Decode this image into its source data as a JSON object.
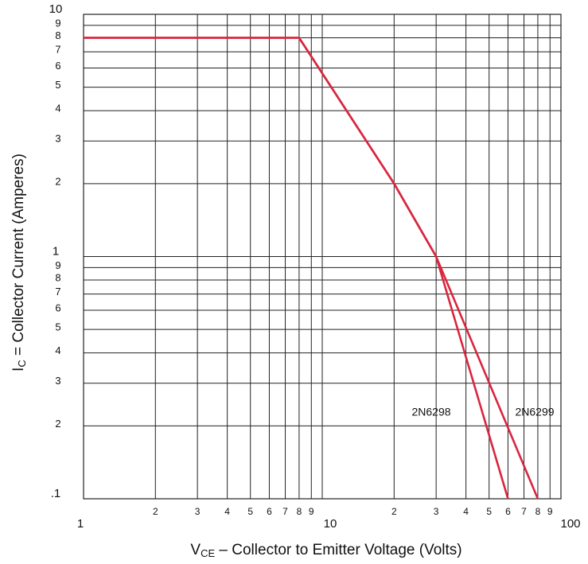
{
  "chart_data": {
    "type": "line",
    "xlabel": [
      "V",
      "CE",
      " – Collector to Emitter Voltage (Volts)"
    ],
    "ylabel": [
      "I",
      "C",
      " = Collector Current (Amperes)"
    ],
    "xscale": "log",
    "yscale": "log",
    "grid": true,
    "xlim": [
      1,
      100
    ],
    "ylim": [
      0.1,
      10
    ],
    "xticks": [
      1,
      2,
      3,
      4,
      5,
      6,
      7,
      8,
      9,
      10,
      {
        "value": 20,
        "label": "2"
      },
      {
        "value": 30,
        "label": "3"
      },
      {
        "value": 40,
        "label": "4"
      },
      {
        "value": 50,
        "label": "5"
      },
      {
        "value": 60,
        "label": "6"
      },
      {
        "value": 70,
        "label": "7"
      },
      {
        "value": 80,
        "label": "8"
      },
      {
        "value": 90,
        "label": "9"
      },
      100
    ],
    "yticks": [
      {
        "value": 0.1,
        "label": ".1"
      },
      {
        "value": 0.2,
        "label": "2"
      },
      {
        "value": 0.3,
        "label": "3"
      },
      {
        "value": 0.4,
        "label": "4"
      },
      {
        "value": 0.5,
        "label": "5"
      },
      {
        "value": 0.6,
        "label": "6"
      },
      {
        "value": 0.7,
        "label": "7"
      },
      {
        "value": 0.8,
        "label": "8"
      },
      {
        "value": 0.9,
        "label": "9"
      },
      1,
      2,
      3,
      4,
      5,
      6,
      7,
      8,
      9,
      10
    ],
    "series": [
      {
        "name": "2N6298",
        "color": "#d9263f",
        "x": [
          1,
          8,
          20,
          30,
          60
        ],
        "values": [
          8,
          8,
          2,
          1,
          0.1
        ]
      },
      {
        "name": "2N6299",
        "color": "#d9263f",
        "x": [
          1,
          8,
          20,
          30,
          80
        ],
        "values": [
          8,
          8,
          2,
          1,
          0.1
        ]
      }
    ]
  }
}
